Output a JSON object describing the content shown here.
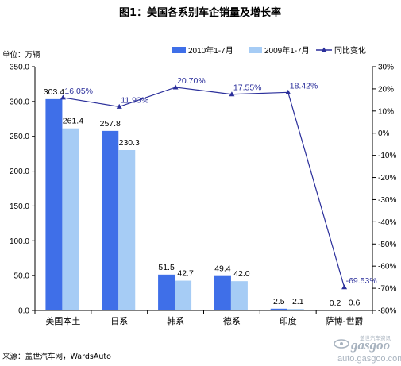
{
  "title": "图1：美国各系别车企销量及增长率",
  "unit_label": "单位：万辆",
  "source": "来源：盖世汽车网，WardsAuto",
  "watermark": {
    "brand": "gasgoo",
    "tagline": "盖世汽车资讯",
    "url": "auto.gasgoo.com"
  },
  "colors": {
    "bar2010": "#3f6fe8",
    "bar2009": "#a6ccf5",
    "line": "#2b2f9b"
  },
  "chart_data": {
    "type": "bar",
    "categories": [
      "美国本土",
      "日系",
      "韩系",
      "德系",
      "印度",
      "萨博-世爵"
    ],
    "series": [
      {
        "name": "2010年1-7月",
        "type": "bar",
        "axis": "left",
        "values": [
          303.4,
          257.8,
          51.5,
          49.4,
          2.5,
          0.2
        ],
        "labels": [
          "303.4",
          "257.8",
          "51.5",
          "49.4",
          "2.5",
          "0.2"
        ]
      },
      {
        "name": "2009年1-7月",
        "type": "bar",
        "axis": "left",
        "values": [
          261.4,
          230.3,
          42.7,
          42.0,
          2.1,
          0.6
        ],
        "labels": [
          "261.4",
          "230.3",
          "42.7",
          "42.0",
          "2.1",
          "0.6"
        ]
      },
      {
        "name": "同比变化",
        "type": "line",
        "axis": "right",
        "values": [
          16.05,
          11.93,
          20.7,
          17.55,
          18.42,
          -69.53
        ],
        "labels": [
          "16.05%",
          "11.93%",
          "20.70%",
          "17.55%",
          "18.42%",
          "-69.53%"
        ]
      }
    ],
    "y_left": {
      "range": [
        0,
        350
      ],
      "ticks": [
        "0.0",
        "50.0",
        "100.0",
        "150.0",
        "200.0",
        "250.0",
        "300.0",
        "350.0"
      ]
    },
    "y_right": {
      "range": [
        -80,
        30
      ],
      "ticks": [
        "-80%",
        "-70%",
        "-60%",
        "-50%",
        "-40%",
        "-30%",
        "-20%",
        "-10%",
        "0%",
        "10%",
        "20%",
        "30%"
      ]
    },
    "legend_position": "top-right",
    "grid": false
  }
}
